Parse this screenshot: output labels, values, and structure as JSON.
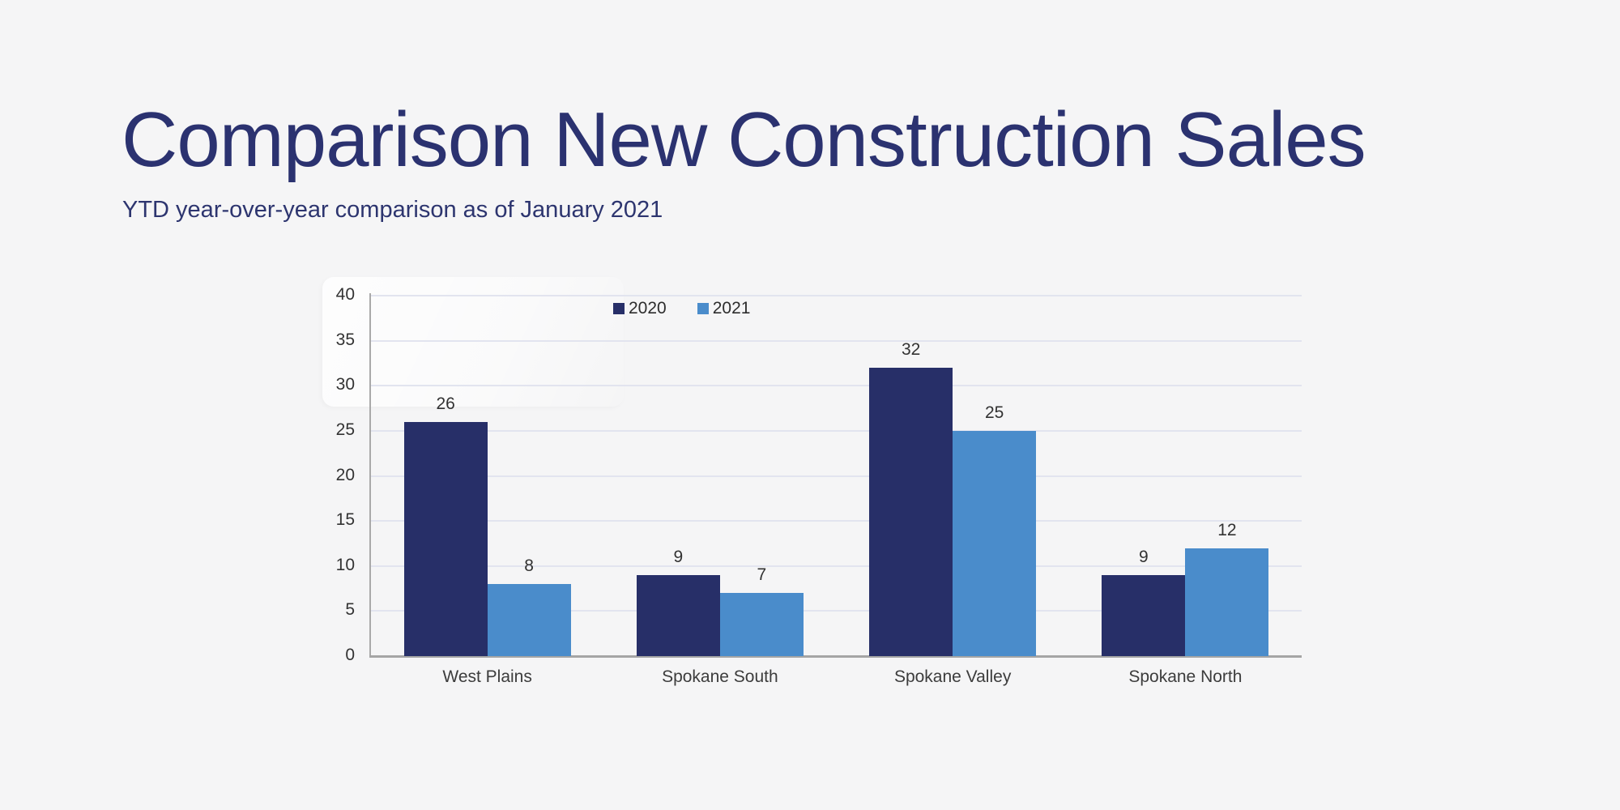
{
  "header": {
    "title": "Comparison New Construction Sales",
    "subtitle": "YTD year-over-year comparison as of January 2021"
  },
  "colors": {
    "background": "#f5f5f6",
    "title_text": "#2b3270",
    "series_2020": "#272f68",
    "series_2021": "#4a8ccb",
    "gridline": "#e2e4ef",
    "axis_line": "#a5a5a5",
    "label_text": "#333333"
  },
  "chart_data": {
    "type": "bar",
    "title": "Comparison New Construction Sales",
    "subtitle": "YTD year-over-year comparison as of January 2021",
    "categories": [
      "West Plains",
      "Spokane South",
      "Spokane Valley",
      "Spokane North"
    ],
    "series": [
      {
        "name": "2020",
        "color": "#272f68",
        "values": [
          26,
          9,
          32,
          9
        ]
      },
      {
        "name": "2021",
        "color": "#4a8ccb",
        "values": [
          8,
          7,
          25,
          12
        ]
      }
    ],
    "xlabel": "",
    "ylabel": "",
    "ylim": [
      0,
      40
    ],
    "yticks": [
      0,
      5,
      10,
      15,
      20,
      25,
      30,
      35,
      40
    ],
    "grid": true,
    "data_labels": true,
    "legend_position": "top"
  }
}
